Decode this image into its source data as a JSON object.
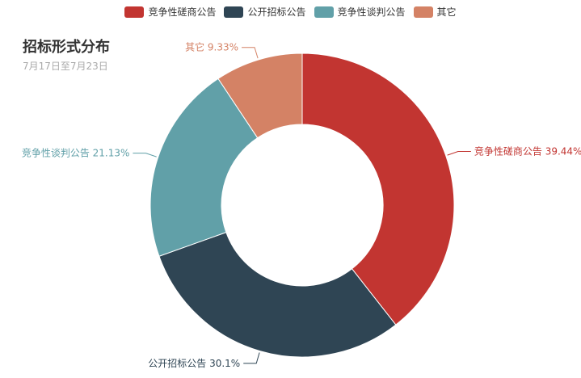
{
  "title": "招标形式分布",
  "subtitle": "7月17日至7月23日",
  "colors": [
    "#c23531",
    "#2f4554",
    "#61a0a8",
    "#d48265"
  ],
  "chart_data": {
    "type": "pie",
    "variant": "donut",
    "title": "招标形式分布",
    "subtitle": "7月17日至7月23日",
    "legend_position": "top-center",
    "categories": [
      "竞争性磋商公告",
      "公开招标公告",
      "竞争性谈判公告",
      "其它"
    ],
    "values": [
      39.44,
      30.1,
      21.13,
      9.33
    ],
    "labels": [
      "竞争性磋商公告 39.44%",
      "公开招标公告 30.1%",
      "竞争性谈判公告 21.13%",
      "其它 9.33%"
    ]
  }
}
